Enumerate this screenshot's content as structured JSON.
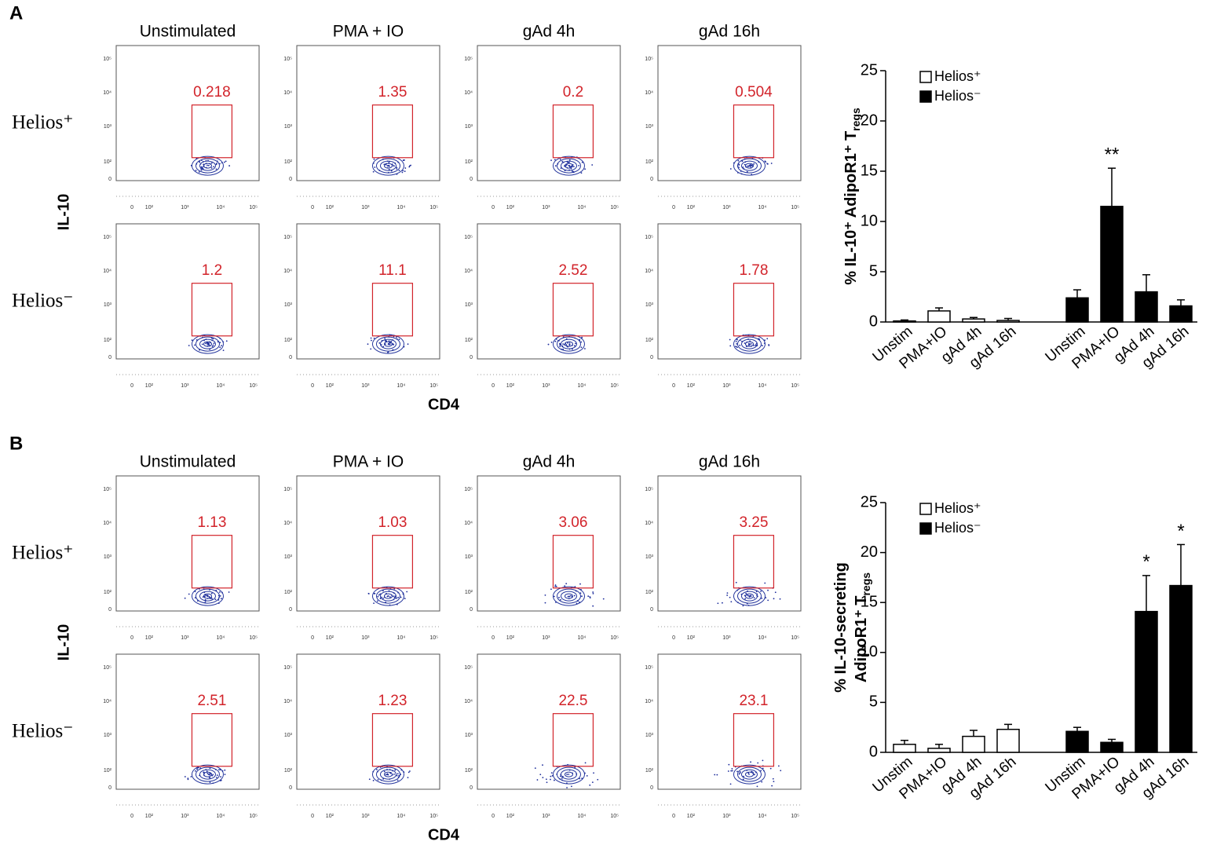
{
  "panels": [
    {
      "label": "A",
      "flow": {
        "columns": [
          "Unstimulated",
          "PMA + IO",
          "gAd 4h",
          "gAd 16h"
        ],
        "rows": [
          "Helios⁺",
          "Helios⁻"
        ],
        "ylabel": "IL-10",
        "xlabel": "CD4",
        "ticks": [
          "0",
          "10²",
          "10³",
          "10⁴",
          "10⁵"
        ],
        "gates": [
          [
            0.218,
            1.35,
            0.2,
            0.504
          ],
          [
            1.2,
            11.1,
            2.52,
            1.78
          ]
        ]
      }
    },
    {
      "label": "B",
      "flow": {
        "columns": [
          "Unstimulated",
          "PMA + IO",
          "gAd 4h",
          "gAd 16h"
        ],
        "rows": [
          "Helios⁺",
          "Helios⁻"
        ],
        "ylabel": "IL-10",
        "xlabel": "CD4",
        "ticks": [
          "0",
          "10²",
          "10³",
          "10⁴",
          "10⁵"
        ],
        "gates": [
          [
            1.13,
            1.03,
            3.06,
            3.25
          ],
          [
            2.51,
            1.23,
            22.5,
            23.1
          ]
        ]
      }
    }
  ],
  "chart_data": [
    {
      "type": "bar",
      "ylabel": [
        {
          "text": "% IL-10⁺ AdipoR1⁺ T",
          "sub": "regs"
        }
      ],
      "categories": [
        "Unstim",
        "PMA+IO",
        "gAd 4h",
        "gAd 16h",
        "Unstim",
        "PMA+IO",
        "gAd 4h",
        "gAd 16h"
      ],
      "series": [
        {
          "name": "Helios⁺",
          "color": "#ffffff",
          "values": [
            0.1,
            1.1,
            0.3,
            0.15,
            null,
            null,
            null,
            null
          ],
          "errors": [
            0.1,
            0.3,
            0.15,
            0.2,
            null,
            null,
            null,
            null
          ],
          "significance": [
            null,
            null,
            null,
            null,
            null,
            null,
            null,
            null
          ]
        },
        {
          "name": "Helios⁻",
          "color": "#000000",
          "values": [
            null,
            null,
            null,
            null,
            2.4,
            11.5,
            3.0,
            1.6
          ],
          "errors": [
            null,
            null,
            null,
            null,
            0.8,
            3.8,
            1.7,
            0.6
          ],
          "significance": [
            null,
            null,
            null,
            null,
            null,
            "**",
            null,
            null
          ]
        }
      ],
      "ylim": [
        0,
        25
      ],
      "yticks": [
        0,
        5,
        10,
        15,
        20,
        25
      ],
      "legend": "top-left"
    },
    {
      "type": "bar",
      "ylabel": [
        {
          "text": "% IL-10-secreting"
        },
        {
          "text": "AdipoR1⁺ T",
          "sub": "regs"
        }
      ],
      "categories": [
        "Unstim",
        "PMA+IO",
        "gAd 4h",
        "gAd 16h",
        "Unstim",
        "PMA+IO",
        "gAd 4h",
        "gAd 16h"
      ],
      "series": [
        {
          "name": "Helios⁺",
          "color": "#ffffff",
          "values": [
            0.8,
            0.4,
            1.6,
            2.3,
            null,
            null,
            null,
            null
          ],
          "errors": [
            0.4,
            0.4,
            0.6,
            0.5,
            null,
            null,
            null,
            null
          ],
          "significance": [
            null,
            null,
            null,
            null,
            null,
            null,
            null,
            null
          ]
        },
        {
          "name": "Helios⁻",
          "color": "#000000",
          "values": [
            null,
            null,
            null,
            null,
            2.1,
            1.0,
            14.1,
            16.7
          ],
          "errors": [
            null,
            null,
            null,
            null,
            0.4,
            0.3,
            3.6,
            4.1
          ],
          "significance": [
            null,
            null,
            null,
            null,
            null,
            null,
            "*",
            "*"
          ]
        }
      ],
      "ylim": [
        0,
        25
      ],
      "yticks": [
        0,
        5,
        10,
        15,
        20,
        25
      ],
      "legend": "top-left"
    }
  ]
}
